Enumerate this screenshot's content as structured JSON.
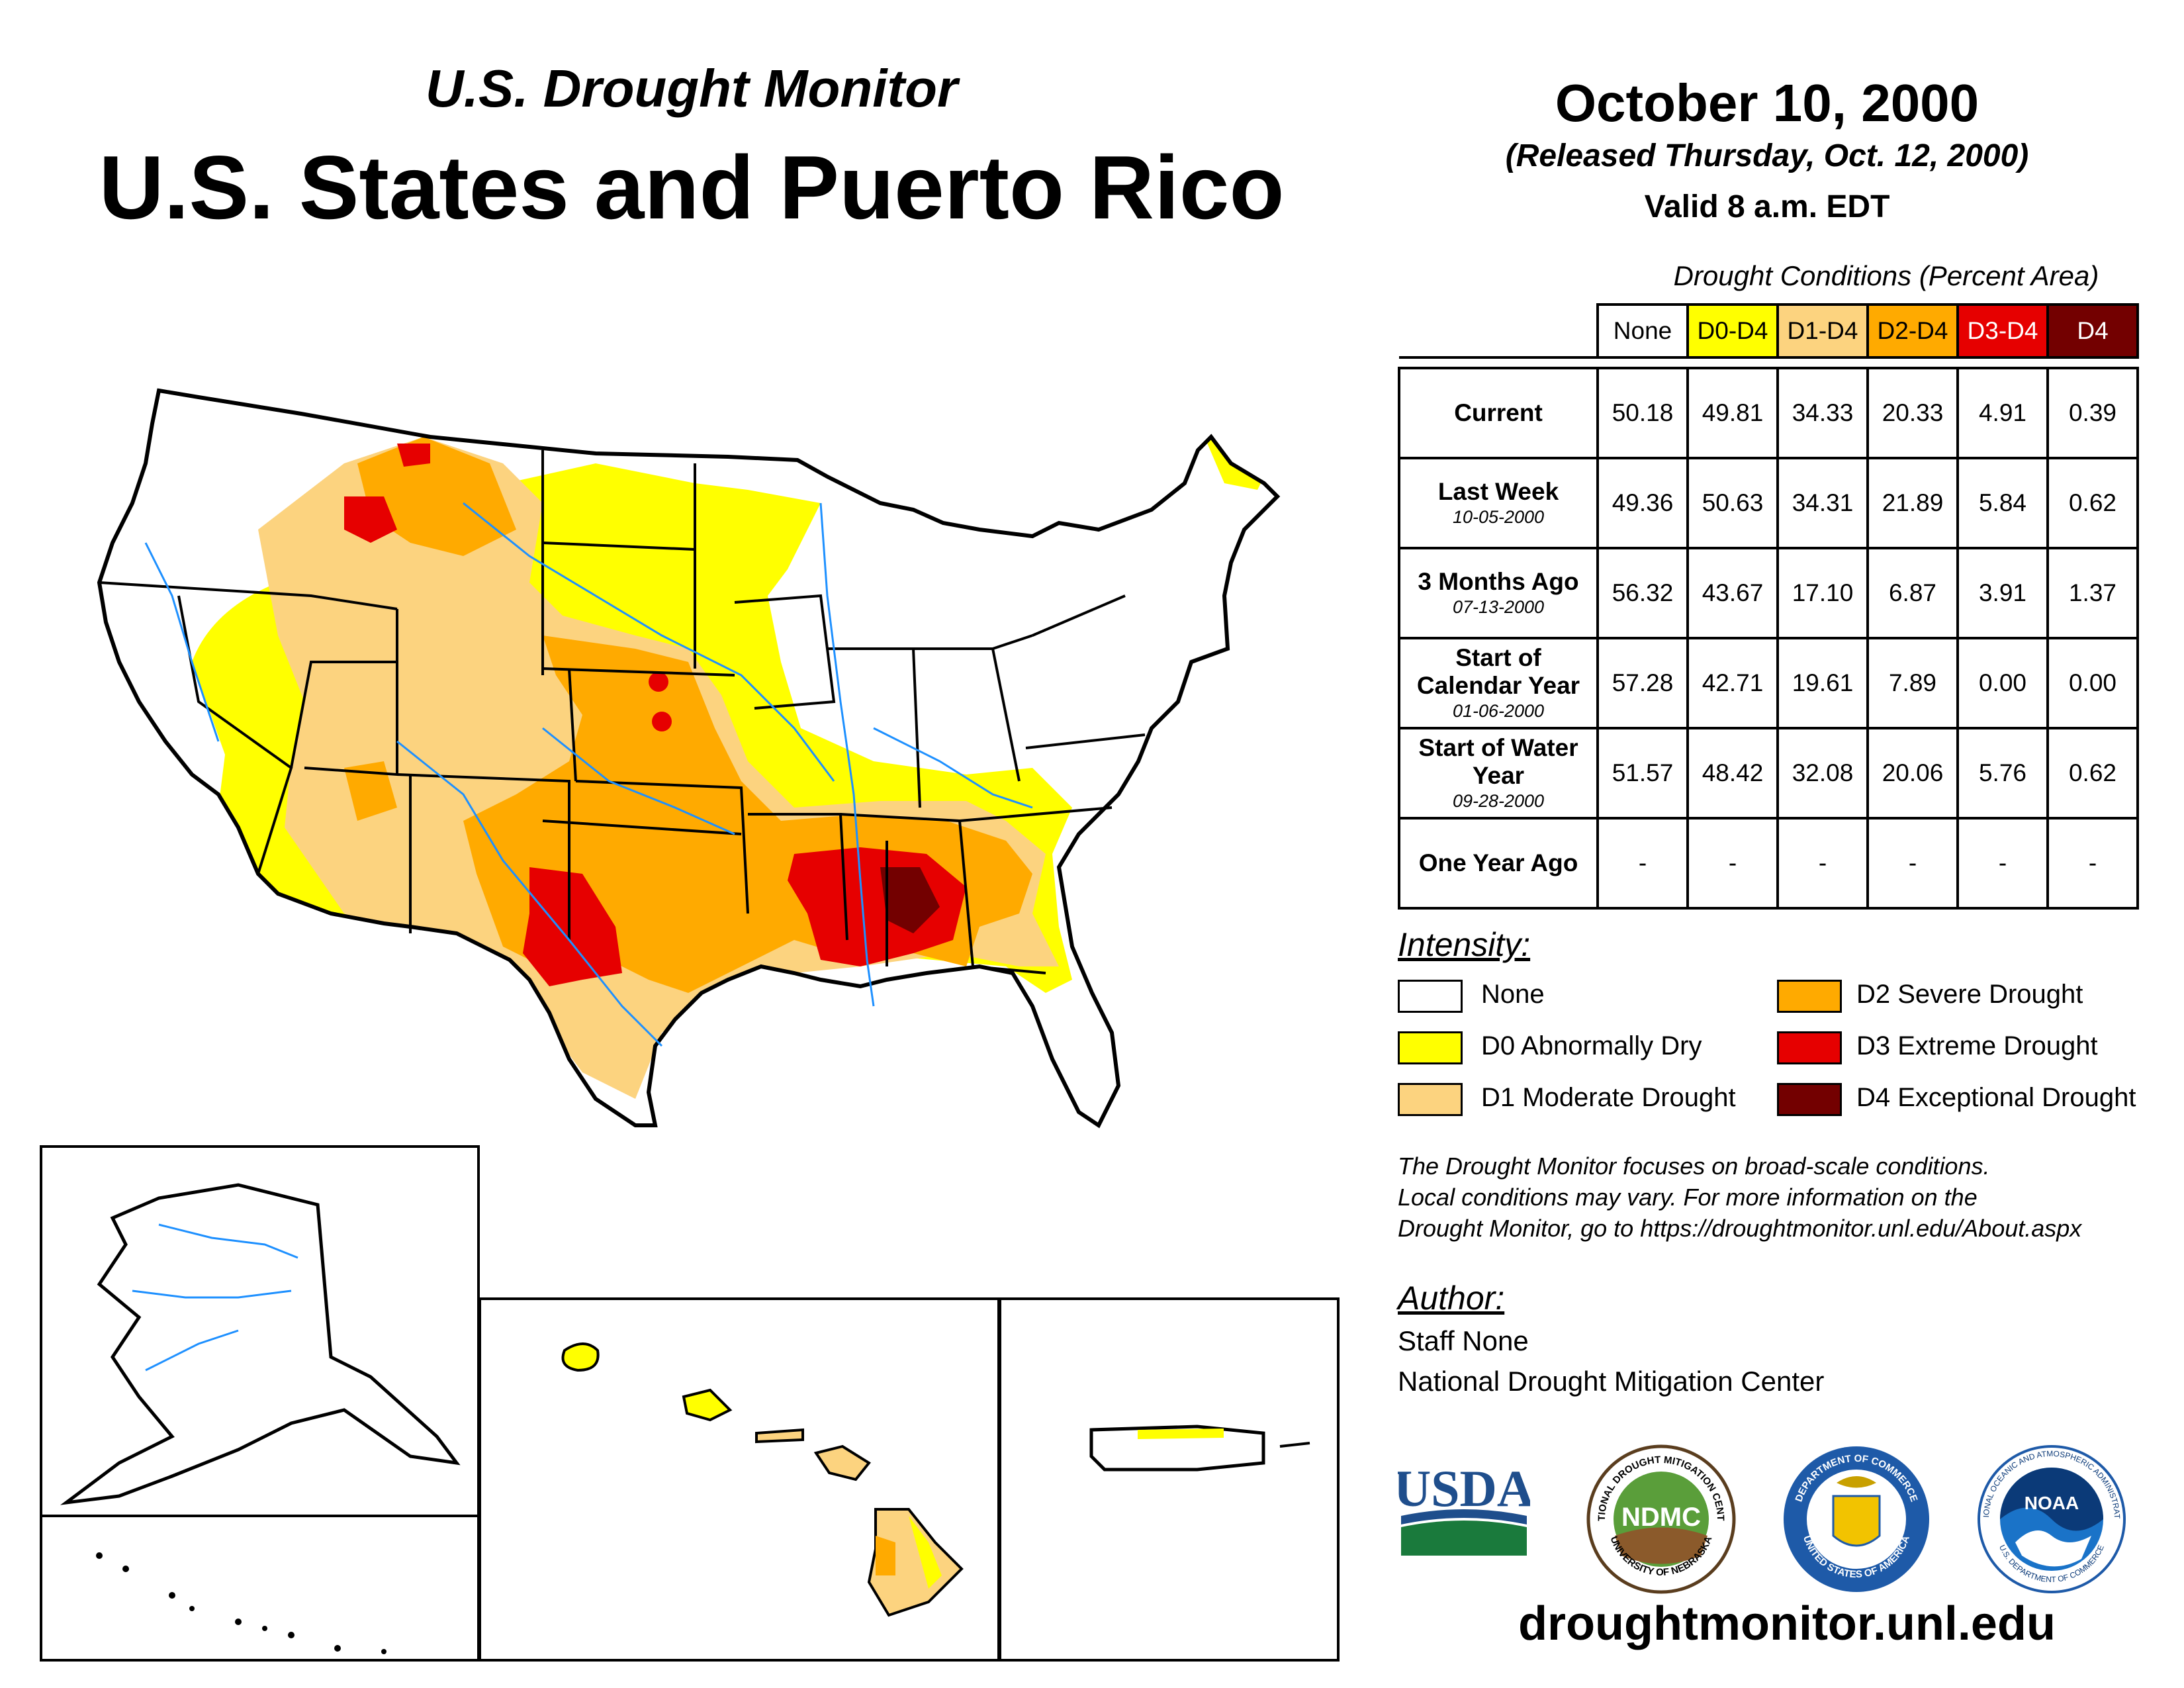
{
  "header": {
    "subtitle": "U.S. Drought Monitor",
    "title": "U.S. States and Puerto Rico",
    "date": "October 10, 2000",
    "released": "(Released Thursday, Oct. 12, 2000)",
    "valid": "Valid 8 a.m. EDT"
  },
  "table": {
    "caption": "Drought Conditions (Percent Area)",
    "columns": [
      "None",
      "D0-D4",
      "D1-D4",
      "D2-D4",
      "D3-D4",
      "D4"
    ],
    "column_colors": [
      "#ffffff",
      "#ffff00",
      "#fcd37f",
      "#ffaa00",
      "#e60000",
      "#730000"
    ],
    "rows": [
      {
        "label": "Current",
        "date": "",
        "values": [
          "50.18",
          "49.81",
          "34.33",
          "20.33",
          "4.91",
          "0.39"
        ]
      },
      {
        "label": "Last Week",
        "date": "10-05-2000",
        "values": [
          "49.36",
          "50.63",
          "34.31",
          "21.89",
          "5.84",
          "0.62"
        ]
      },
      {
        "label": "3 Months Ago",
        "date": "07-13-2000",
        "values": [
          "56.32",
          "43.67",
          "17.10",
          "6.87",
          "3.91",
          "1.37"
        ]
      },
      {
        "label": "Start of Calendar Year",
        "date": "01-06-2000",
        "values": [
          "57.28",
          "42.71",
          "19.61",
          "7.89",
          "0.00",
          "0.00"
        ]
      },
      {
        "label": "Start of Water Year",
        "date": "09-28-2000",
        "values": [
          "51.57",
          "48.42",
          "32.08",
          "20.06",
          "5.76",
          "0.62"
        ]
      },
      {
        "label": "One Year Ago",
        "date": "",
        "values": [
          "-",
          "-",
          "-",
          "-",
          "-",
          "-"
        ]
      }
    ]
  },
  "legend": {
    "heading": "Intensity:",
    "items": [
      {
        "label": "None",
        "color": "#ffffff"
      },
      {
        "label": "D0 Abnormally Dry",
        "color": "#ffff00"
      },
      {
        "label": "D1 Moderate Drought",
        "color": "#fcd37f"
      },
      {
        "label": "D2 Severe Drought",
        "color": "#ffaa00"
      },
      {
        "label": "D3 Extreme Drought",
        "color": "#e60000"
      },
      {
        "label": "D4 Exceptional Drought",
        "color": "#730000"
      }
    ]
  },
  "note": {
    "line1": "The Drought Monitor focuses on broad-scale conditions.",
    "line2": "Local conditions may vary. For more information on the",
    "line3": "Drought Monitor, go to https://droughtmonitor.unl.edu/About.aspx"
  },
  "author": {
    "heading": "Author:",
    "name": "Staff None",
    "org": "National Drought Mitigation Center"
  },
  "logos": {
    "usda": "USDA",
    "ndmc": "NDMC",
    "ndmc_ring_top": "NATIONAL DROUGHT MITIGATION CENTER",
    "ndmc_ring_bottom": "UNIVERSITY OF NEBRASKA",
    "doc_ring_top": "DEPARTMENT OF COMMERCE",
    "doc_ring_bottom": "UNITED STATES OF AMERICA",
    "noaa": "NOAA",
    "noaa_ring": "NATIONAL OCEANIC AND ATMOSPHERIC ADMINISTRATION",
    "noaa_ring_bottom": "U.S. DEPARTMENT OF COMMERCE"
  },
  "footer_url": "droughtmonitor.unl.edu"
}
